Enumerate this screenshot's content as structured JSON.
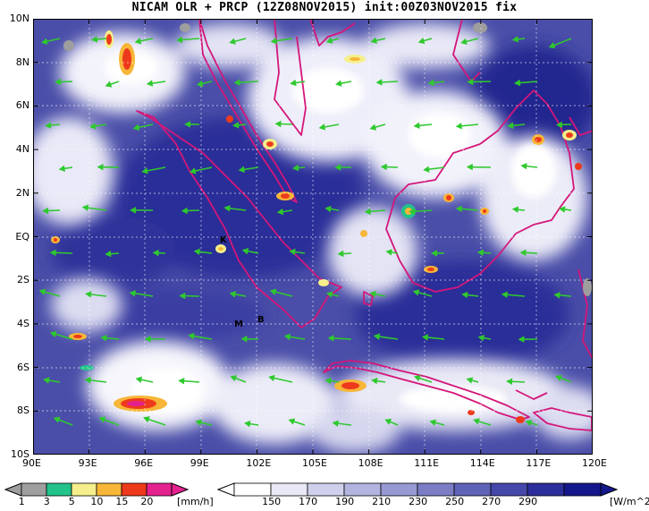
{
  "title": "NICAM OLR + PRCP (12Z08NOV2015) init:00Z03NOV2015 fix",
  "axes": {
    "lat_labels": [
      "10N",
      "8N",
      "6N",
      "4N",
      "2N",
      "EQ",
      "2S",
      "4S",
      "6S",
      "8S",
      "10S"
    ],
    "lon_labels": [
      "90E",
      "93E",
      "96E",
      "99E",
      "102E",
      "105E",
      "108E",
      "111E",
      "114E",
      "117E",
      "120E"
    ]
  },
  "map_markers": [
    {
      "label": "K"
    },
    {
      "label": "M"
    },
    {
      "label": "B"
    }
  ],
  "colorbar_precip": {
    "unit": "[mm/h]",
    "ticks": [
      "1",
      "3",
      "5",
      "10",
      "15",
      "20"
    ],
    "colors": [
      "#9e9e9e",
      "#22c38a",
      "#f4ef8a",
      "#f7b637",
      "#ee3a1c",
      "#e4218f"
    ]
  },
  "colorbar_olr": {
    "unit": "[W/m^2]",
    "ticks": [
      "150",
      "170",
      "190",
      "210",
      "230",
      "250",
      "270",
      "290"
    ],
    "colors": [
      "#ffffff",
      "#e8e8f6",
      "#cfd0ec",
      "#b3b5e0",
      "#9799d3",
      "#7b7ec5",
      "#5f63b8",
      "#4548aa",
      "#2c2f9b",
      "#15188c"
    ]
  },
  "colors": {
    "coastline": "#d4167a",
    "wind_vector": "#2ec92e",
    "ocean_base": "#4a4ea8"
  }
}
